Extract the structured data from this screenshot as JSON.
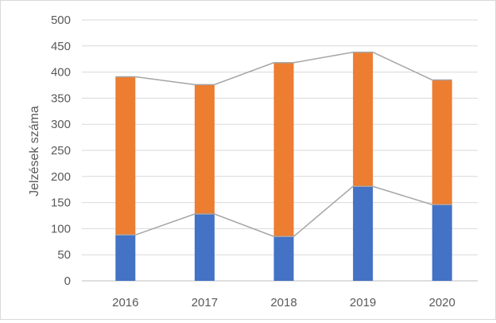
{
  "chart_data": {
    "type": "bar",
    "stacked": true,
    "categories": [
      "2016",
      "2017",
      "2018",
      "2019",
      "2020"
    ],
    "series": [
      {
        "values": [
          88,
          128,
          85,
          181,
          146
        ],
        "color": "#4472c4"
      },
      {
        "values": [
          303,
          248,
          333,
          257,
          239
        ],
        "color": "#ed7d31"
      }
    ],
    "connector_lines": {
      "color": "#a5a5a5",
      "shown": true
    },
    "xlabel": "",
    "ylabel": "Jelzések száma",
    "ylim": [
      0,
      500
    ],
    "yticks": [
      0,
      50,
      100,
      150,
      200,
      250,
      300,
      350,
      400,
      450,
      500
    ],
    "grid": true,
    "legend": "none"
  }
}
